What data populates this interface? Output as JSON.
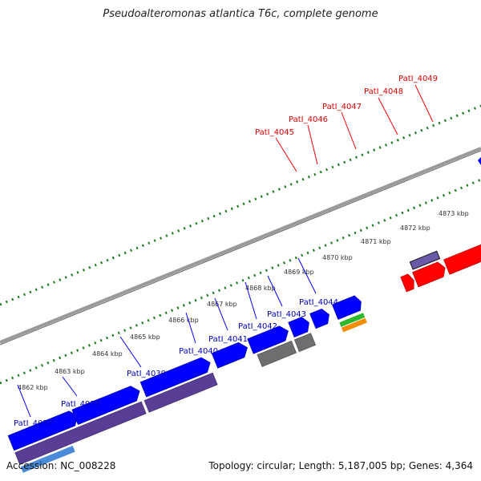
{
  "title": "Pseudoalteromonas atlantica T6c, complete genome",
  "footer": {
    "accession": "Accession: NC_008228",
    "topology": "Topology: circular; Length: 5,187,005 bp; Genes: 4,364"
  },
  "colors": {
    "forward_gene": "#0000ff",
    "reverse_gene": "#5a3e96",
    "highlight_gene": "#ff0000",
    "grey_gene": "#6e6e6e",
    "light_grey_gene": "#c8c8c8",
    "label_blue": "#0000bb",
    "label_red": "#dd0000",
    "tick_green": "#1a7a1a",
    "backbone": "#888888"
  },
  "scale_labels": [
    "4862 kbp",
    "4863 kbp",
    "4864 kbp",
    "4865 kbp",
    "4866 kbp",
    "4867 kbp",
    "4868 kbp",
    "4869 kbp",
    "4870 kbp",
    "4871 kbp",
    "4872 kbp",
    "4873 kbp"
  ],
  "gene_labels_blue": [
    "PatI_4037",
    "PatI_4038",
    "PatI_4039",
    "PatI_4040",
    "PatI_4041",
    "PatI_4042",
    "PatI_4043",
    "PatI_4044"
  ],
  "gene_labels_red": [
    "PatI_4045",
    "PatI_4046",
    "PatI_4047",
    "PatI_4048",
    "PatI_4049"
  ]
}
